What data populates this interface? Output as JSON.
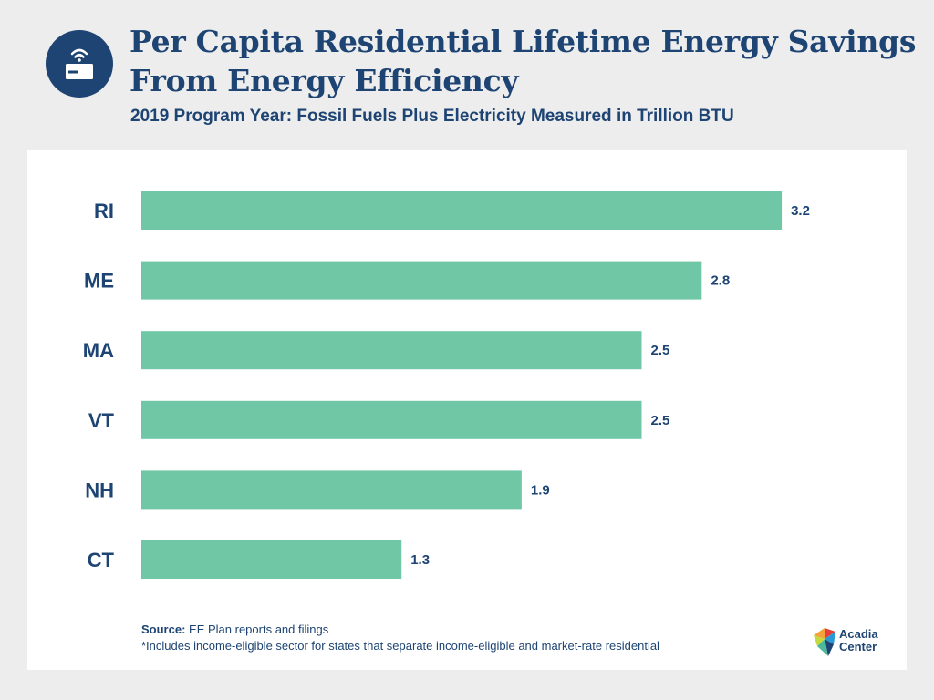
{
  "header": {
    "title": "Per Capita Residential Lifetime Energy Savings From Energy Efficiency",
    "subtitle": "2019 Program Year: Fossil Fuels Plus Electricity Measured in Trillion BTU",
    "icon": "wifi-card-icon"
  },
  "colors": {
    "bar": "#70c7a6",
    "text": "#1d4473",
    "background": "#ededed",
    "panel": "#ffffff"
  },
  "chart_data": {
    "type": "bar",
    "orientation": "horizontal",
    "categories": [
      "RI",
      "ME",
      "MA",
      "VT",
      "NH",
      "CT"
    ],
    "values": [
      3.2,
      2.8,
      2.5,
      2.5,
      1.9,
      1.3
    ],
    "title": "Per Capita Residential Lifetime Energy Savings From Energy Efficiency",
    "subtitle": "2019 Program Year: Fossil Fuels Plus Electricity Measured in Trillion BTU",
    "xlabel": "",
    "ylabel": "",
    "grid": false,
    "data_labels": true
  },
  "footer": {
    "source_label": "Source:",
    "source_text": "EE Plan reports and filings",
    "note": "*Includes income-eligible sector for states that separate income-eligible and market-rate residential",
    "logo_line1": "Acadia",
    "logo_line2": "Center"
  }
}
